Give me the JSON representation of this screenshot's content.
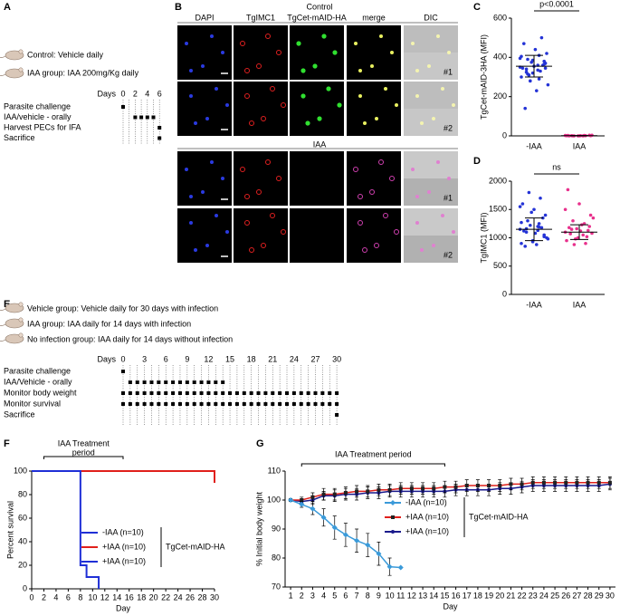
{
  "panel_labels": [
    "A",
    "B",
    "C",
    "D",
    "E",
    "F",
    "G"
  ],
  "panel_a": {
    "groups": [
      "Control: Vehicle daily",
      "IAA group: IAA 200mg/Kg daily"
    ],
    "timeline": {
      "label": "Days",
      "range": [
        0,
        6
      ],
      "ticks": [
        0,
        2,
        4,
        6
      ],
      "rows": [
        {
          "label": "Parasite challenge",
          "days": [
            0
          ]
        },
        {
          "label": "IAA/vehicle - orally",
          "days": [
            2,
            3,
            4,
            5
          ]
        },
        {
          "label": "Harvest PECs for IFA",
          "days": [
            6
          ]
        },
        {
          "label": "Sacrifice",
          "days": [
            6
          ]
        }
      ]
    }
  },
  "panel_b": {
    "channels": [
      "DAPI",
      "TgIMC1",
      "TgCet-mAID-HA",
      "merge",
      "DIC"
    ],
    "conditions": [
      "Control",
      "IAA"
    ],
    "replicates": [
      "#1",
      "#2"
    ]
  },
  "panel_e": {
    "groups": [
      "Vehicle group: Vehicle daily for 30 days with infection",
      "IAA group: IAA daily for 14 days with infection",
      "No infection group: IAA daily for 14 days without infection"
    ],
    "timeline": {
      "label": "Days",
      "range": [
        0,
        30
      ],
      "ticks": [
        0,
        3,
        6,
        9,
        12,
        15,
        18,
        21,
        24,
        27,
        30
      ],
      "rows": [
        {
          "label": "Parasite challenge",
          "days": [
            0
          ]
        },
        {
          "label": "IAA/Vehicle - orally",
          "days": [
            1,
            2,
            3,
            4,
            5,
            6,
            7,
            8,
            9,
            10,
            11,
            12,
            13,
            14
          ]
        },
        {
          "label": "Monitor body weight",
          "days": [
            0,
            1,
            2,
            3,
            4,
            5,
            6,
            7,
            8,
            9,
            10,
            11,
            12,
            13,
            14,
            15,
            16,
            17,
            18,
            19,
            20,
            21,
            22,
            23,
            24,
            25,
            26,
            27,
            28,
            29,
            30
          ]
        },
        {
          "label": "Monitor survival",
          "days": [
            0,
            1,
            2,
            3,
            4,
            5,
            6,
            7,
            8,
            9,
            10,
            11,
            12,
            13,
            14,
            15,
            16,
            17,
            18,
            19,
            20,
            21,
            22,
            23,
            24,
            25,
            26,
            27,
            28,
            29,
            30
          ]
        },
        {
          "label": "Sacrifice",
          "days": [
            30
          ]
        }
      ]
    }
  },
  "chart_data": [
    {
      "type": "dotplot",
      "ylabel": "TgCet-mAID-3HA (MFI)",
      "categories": [
        "-IAA",
        "IAA"
      ],
      "ylim": [
        0,
        600
      ],
      "yticks": [
        0,
        200,
        400,
        600
      ],
      "annotation": "p<0.0001",
      "groups": [
        {
          "color": "#2433d6",
          "mean": 355,
          "sd": 55,
          "values": [
            350,
            360,
            340,
            380,
            320,
            300,
            410,
            390,
            370,
            355,
            345,
            330,
            310,
            420,
            440,
            470,
            500,
            280,
            260,
            230,
            140,
            360,
            375,
            395,
            335,
            325,
            365,
            385,
            405,
            290,
            315,
            345
          ]
        },
        {
          "color": "#e8308c",
          "mean": 1,
          "sd": 1,
          "values": [
            2,
            0,
            1,
            3,
            0,
            1,
            2,
            0,
            1,
            0,
            2,
            1,
            0,
            3,
            1,
            0
          ]
        }
      ]
    },
    {
      "type": "dotplot",
      "ylabel": "TgIMC1 (MFI)",
      "categories": [
        "-IAA",
        "IAA"
      ],
      "ylim": [
        0,
        2000
      ],
      "yticks": [
        0,
        500,
        1000,
        1500,
        2000
      ],
      "annotation": "ns",
      "groups": [
        {
          "color": "#2433d6",
          "mean": 1150,
          "sd": 200,
          "values": [
            1150,
            1200,
            1100,
            1050,
            950,
            900,
            1250,
            1300,
            1400,
            1500,
            1600,
            1700,
            1800,
            1000,
            1080,
            1120,
            1180,
            1220,
            980,
            880,
            850,
            1350,
            1450,
            1550,
            1130,
            1160,
            1020,
            930,
            1270,
            1190
          ]
        },
        {
          "color": "#e8308c",
          "mean": 1100,
          "sd": 130,
          "values": [
            1100,
            1050,
            1150,
            1200,
            1000,
            950,
            1250,
            1300,
            1400,
            1600,
            1850,
            900,
            880,
            1080,
            1120,
            1180,
            1020,
            980,
            1350,
            1230,
            1070,
            1130,
            1160,
            1500
          ]
        }
      ]
    },
    {
      "type": "survival",
      "xlabel": "Day",
      "ylabel": "Percent survival",
      "xlim": [
        0,
        30
      ],
      "xticks": [
        0,
        2,
        4,
        6,
        8,
        10,
        12,
        14,
        16,
        18,
        20,
        22,
        24,
        26,
        28,
        30
      ],
      "ylim": [
        0,
        100
      ],
      "yticks": [
        0,
        20,
        40,
        60,
        80,
        100
      ],
      "annotation": [
        "IAA Treatment",
        "period"
      ],
      "treatment": [
        2,
        15
      ],
      "legend_group": "TgCet-mAID-HA",
      "series": [
        {
          "name": "-IAA (n=10)",
          "color": "#1f2fd6",
          "x": [
            0,
            8,
            8,
            9,
            9,
            11,
            11
          ],
          "values": [
            100,
            100,
            20,
            20,
            10,
            10,
            0
          ]
        },
        {
          "name": "+IAA (n=10)",
          "color": "#e0201b",
          "x": [
            0,
            30,
            30
          ],
          "values": [
            100,
            100,
            90
          ]
        },
        {
          "name": "+IAA (n=10)",
          "color": "#1f2fd6",
          "x": [
            0,
            30,
            30
          ],
          "values": [
            100,
            100,
            90
          ]
        }
      ]
    },
    {
      "type": "line_errorbar",
      "xlabel": "Day",
      "ylabel": "% Initial body weight",
      "xlim": [
        0.5,
        30.5
      ],
      "xticks": [
        1,
        2,
        3,
        4,
        5,
        6,
        7,
        8,
        9,
        10,
        11,
        12,
        13,
        14,
        15,
        16,
        17,
        18,
        19,
        20,
        21,
        22,
        23,
        24,
        25,
        26,
        27,
        28,
        29,
        30
      ],
      "ylim": [
        70,
        110
      ],
      "yticks": [
        70,
        80,
        90,
        100,
        110
      ],
      "annotation": "IAA Treatment period",
      "treatment": [
        2,
        15
      ],
      "legend_group": "TgCet-mAID-HA",
      "series": [
        {
          "name": "-IAA (n=10)",
          "color": "#3a9ad9",
          "marker": "diamond",
          "x": [
            1,
            2,
            3,
            4,
            5,
            6,
            7,
            8,
            9,
            10,
            11
          ],
          "values": [
            100,
            98.5,
            97,
            94,
            90.5,
            88,
            86,
            84.5,
            81.5,
            77,
            76.7
          ],
          "errors": [
            0,
            1,
            2,
            3,
            4,
            4,
            4,
            4,
            4,
            3,
            0
          ]
        },
        {
          "name": "+IAA (n=10)",
          "color": "#e0201b",
          "marker": "square",
          "x": [
            1,
            2,
            3,
            4,
            5,
            6,
            7,
            8,
            9,
            10,
            11,
            12,
            13,
            14,
            15,
            16,
            17,
            18,
            19,
            20,
            21,
            22,
            23,
            24,
            25,
            26,
            27,
            28,
            29,
            30
          ],
          "values": [
            100,
            100,
            101,
            102,
            102,
            102.5,
            103,
            103,
            103.5,
            103.5,
            104,
            104,
            104,
            104,
            104.5,
            104.5,
            105,
            105,
            105,
            105,
            105.5,
            105.5,
            106,
            106,
            106,
            106,
            106,
            106,
            106,
            106
          ],
          "errors": [
            0,
            1,
            1.5,
            2,
            2,
            2,
            2,
            2,
            2,
            2,
            2,
            2,
            2,
            2,
            2,
            2,
            2,
            2,
            2,
            2,
            2,
            2,
            2,
            2,
            2,
            2,
            2,
            2,
            2,
            2
          ]
        },
        {
          "name": "+IAA (n=10)",
          "color": "#1a1a8c",
          "marker": "circle",
          "x": [
            1,
            2,
            3,
            4,
            5,
            6,
            7,
            8,
            9,
            10,
            11,
            12,
            13,
            14,
            15,
            16,
            17,
            18,
            19,
            20,
            21,
            22,
            23,
            24,
            25,
            26,
            27,
            28,
            29,
            30
          ],
          "values": [
            100,
            99.5,
            100,
            101.5,
            101.5,
            102,
            102,
            102.5,
            102.5,
            103,
            103,
            103,
            103,
            103,
            103,
            103.5,
            103.5,
            103.5,
            103.5,
            104,
            104,
            104.5,
            105,
            105,
            105,
            105,
            105,
            105,
            105,
            105.5
          ],
          "errors": [
            0,
            1,
            1.5,
            1.5,
            2,
            2,
            2,
            2,
            2,
            2,
            2,
            2,
            2,
            2,
            2,
            2,
            2,
            2,
            2,
            2,
            2,
            2,
            2,
            2,
            2,
            2,
            2,
            2,
            2,
            2
          ]
        }
      ]
    }
  ]
}
